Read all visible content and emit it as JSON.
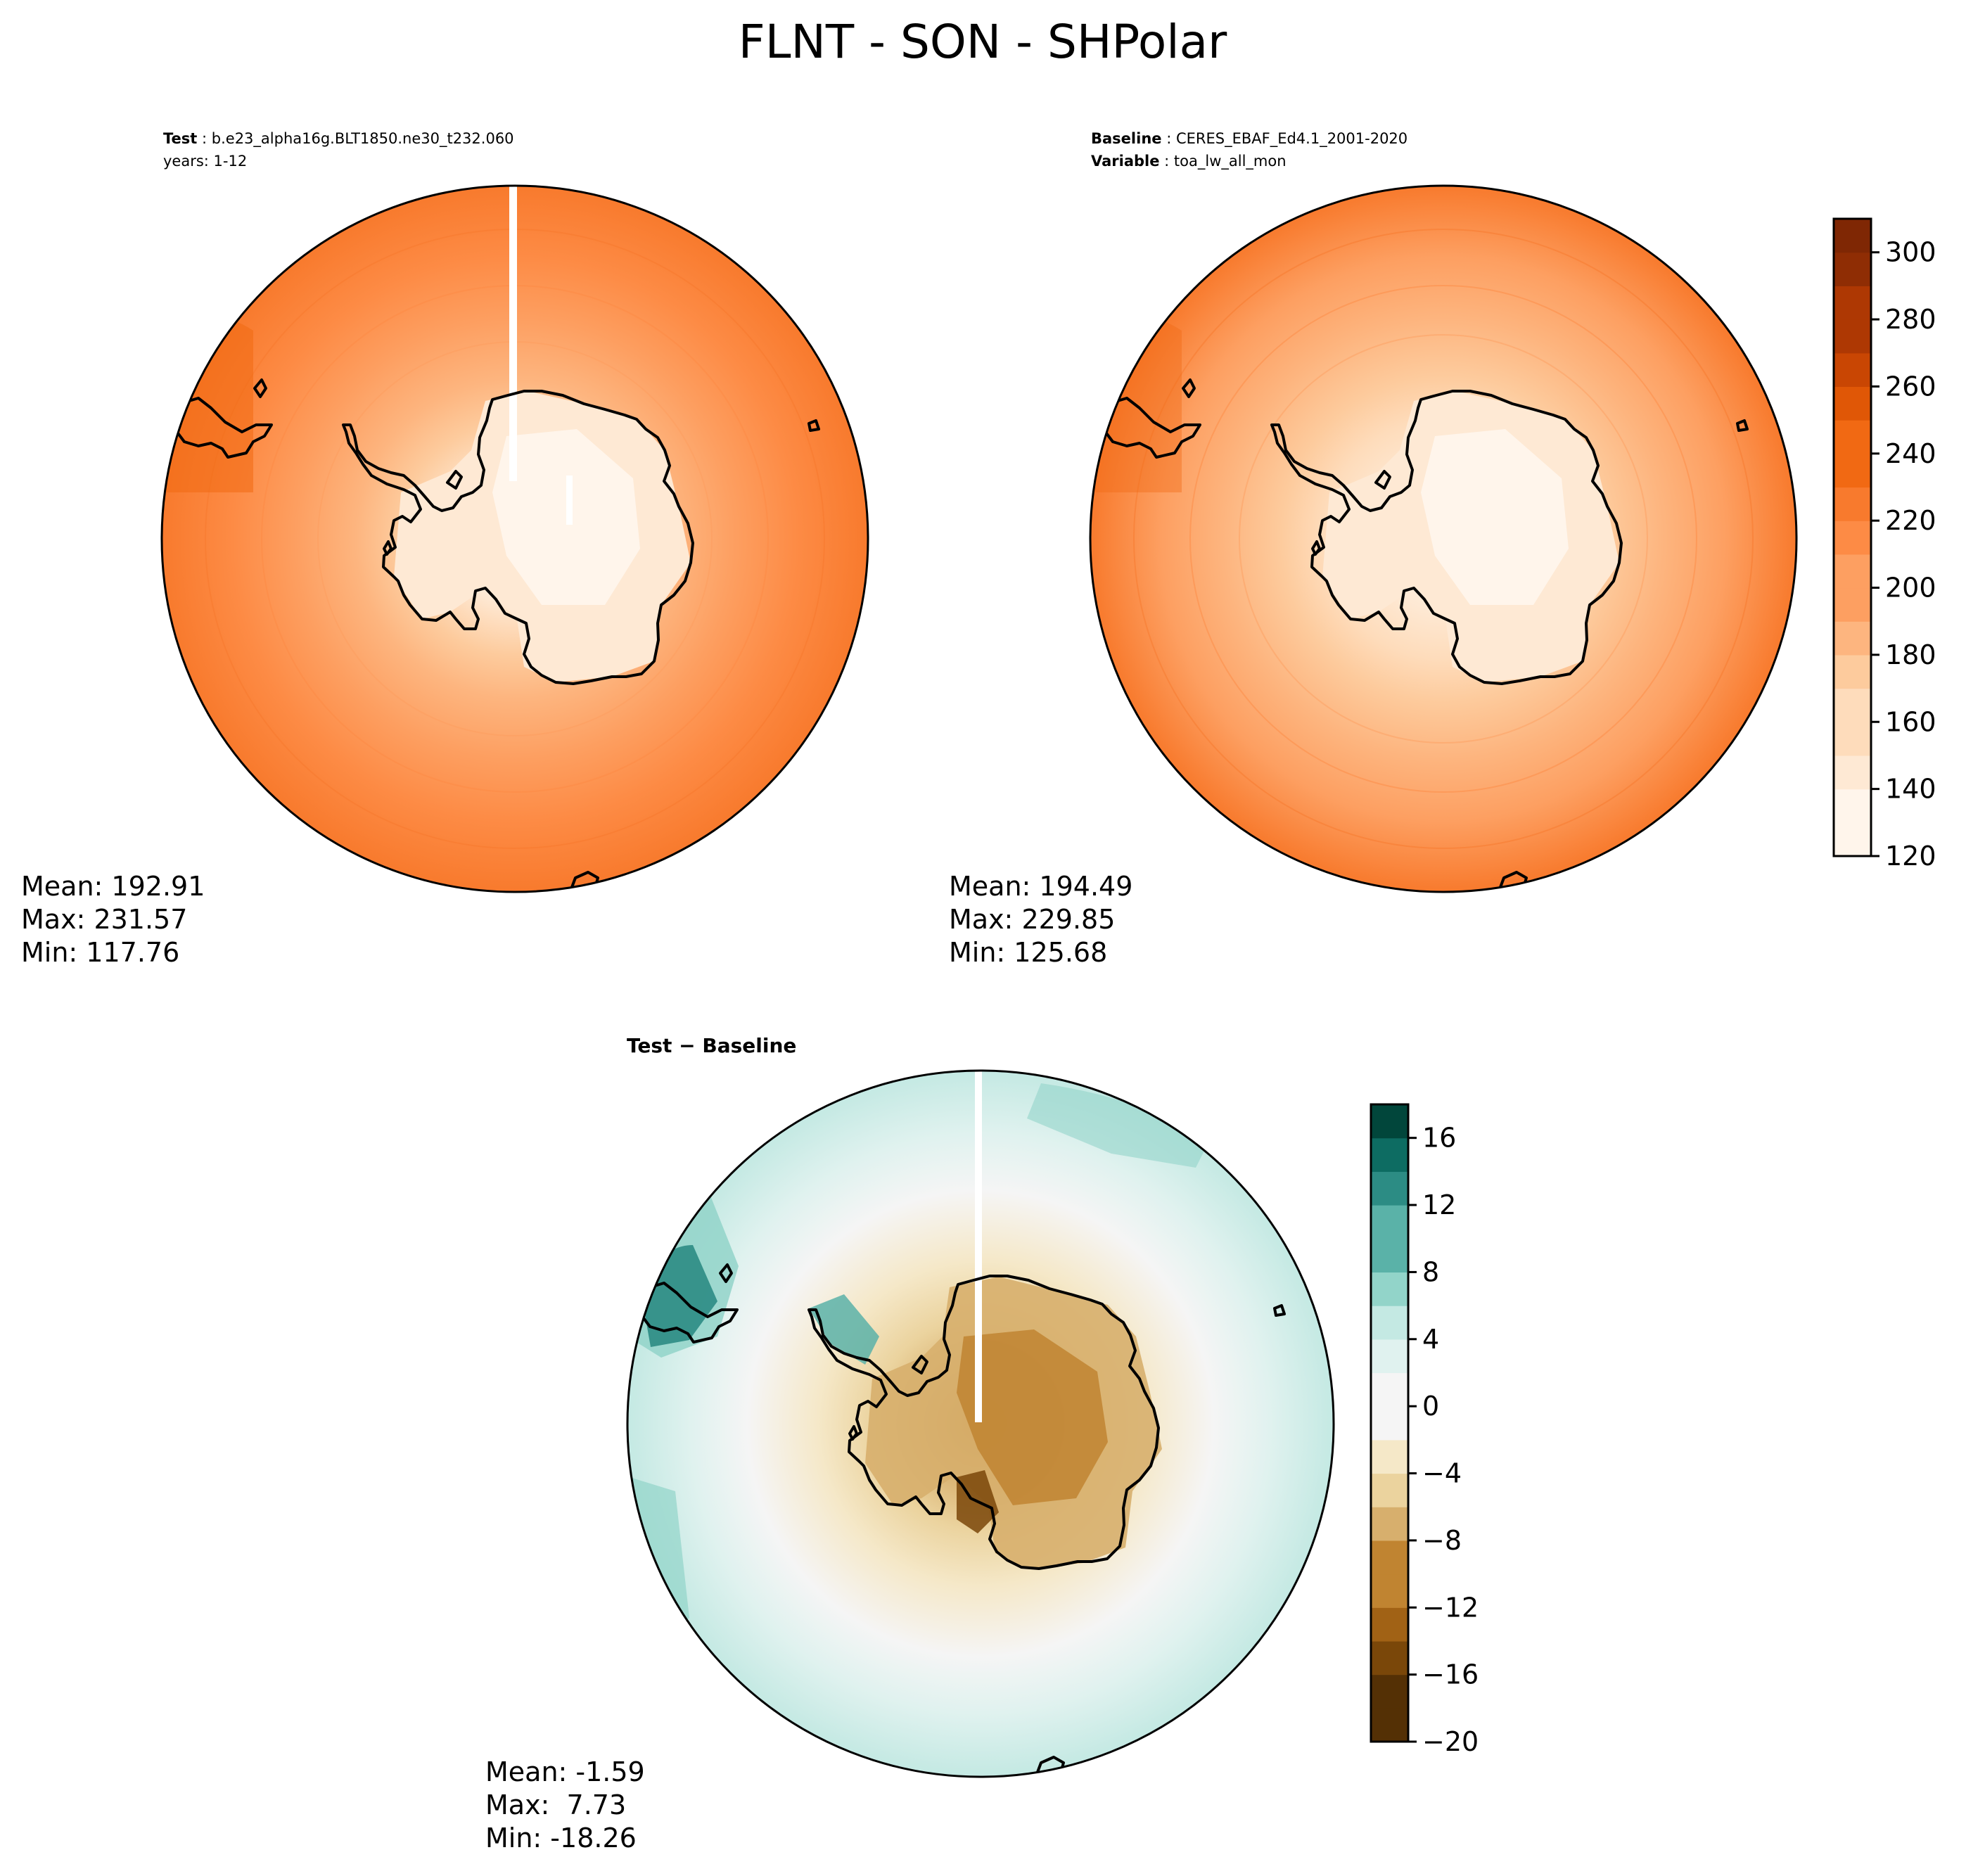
{
  "title": "FLNT - SON - SHPolar",
  "colors": {
    "oranges": [
      "#fff5eb",
      "#fee9d4",
      "#fedcbb",
      "#fdcb9d",
      "#fdb57f",
      "#fd9f61",
      "#fd8b45",
      "#f87a2d",
      "#f16913",
      "#e05706",
      "#c94603",
      "#ae3803",
      "#8f2d04",
      "#7f2704"
    ],
    "brbg": [
      "#543005",
      "#7a4709",
      "#a16215",
      "#c08431",
      "#d7af6d",
      "#ebd39e",
      "#f5e8c8",
      "#f5f5f5",
      "#e0f2ef",
      "#c4e9e3",
      "#92d4c9",
      "#5ab2a8",
      "#2c8c84",
      "#0d6c62",
      "#01463b"
    ]
  },
  "panels": {
    "test": {
      "label_bold": "Test",
      "label_value": "b.e23_alpha16g.BLT1850.ne30_t232.060",
      "line2": "years: 1-12",
      "stats": {
        "mean": "Mean: 192.91",
        "max": "Max: 231.57",
        "min": "Min: 117.76"
      }
    },
    "baseline": {
      "label_bold": "Baseline",
      "label_value": "CERES_EBAF_Ed4.1_2001-2020",
      "line2_bold": "Variable",
      "line2_value": "toa_lw_all_mon",
      "stats": {
        "mean": "Mean: 194.49",
        "max": "Max: 229.85",
        "min": "Min: 125.68"
      }
    },
    "diff": {
      "label": "Test − Baseline",
      "stats": {
        "mean": "Mean: -1.59",
        "max": "Max:  7.73",
        "min": "Min: -18.26"
      }
    }
  },
  "chart_data": [
    {
      "type": "heatmap",
      "projection": "south-polar-stereographic",
      "variable": "FLNT",
      "season": "SON",
      "panel": "test",
      "mean": 192.91,
      "max": 231.57,
      "min": 117.76
    },
    {
      "type": "heatmap",
      "projection": "south-polar-stereographic",
      "variable": "FLNT",
      "season": "SON",
      "panel": "baseline",
      "mean": 194.49,
      "max": 229.85,
      "min": 125.68
    },
    {
      "type": "heatmap",
      "projection": "south-polar-stereographic",
      "variable": "FLNT",
      "season": "SON",
      "panel": "difference",
      "mean": -1.59,
      "max": 7.73,
      "min": -18.26
    }
  ],
  "colorbars": {
    "main": {
      "min": 120,
      "max": 310,
      "step": 10,
      "ticks": [
        "120",
        "140",
        "160",
        "180",
        "200",
        "220",
        "240",
        "260",
        "280",
        "300"
      ],
      "tick_values": [
        120,
        140,
        160,
        180,
        200,
        220,
        240,
        260,
        280,
        300
      ]
    },
    "diff": {
      "min": -20,
      "max": 18,
      "step": 2,
      "ticks": [
        "−20",
        "−16",
        "−12",
        "−8",
        "−4",
        "0",
        "4",
        "8",
        "12",
        "16"
      ],
      "tick_values": [
        -20,
        -16,
        -12,
        -8,
        -4,
        0,
        4,
        8,
        12,
        16
      ]
    }
  }
}
